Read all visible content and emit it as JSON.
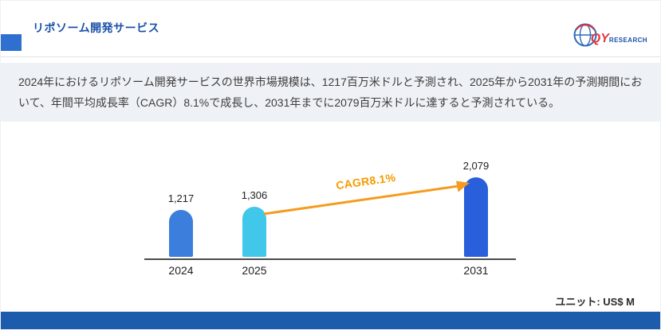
{
  "header": {
    "title": "リポソーム開発サービス",
    "logo": {
      "qy": "QY",
      "research": "RESEARCH"
    }
  },
  "description": "2024年におけるリポソーム開発サービスの世界市場規模は、1217百万米ドルと予測され、2025年から2031年の予測期間において、年間平均成長率（CAGR）8.1%で成長し、2031年までに2079百万米ドルに達すると予測されている。",
  "chart_data": {
    "type": "bar",
    "title": "",
    "xlabel": "",
    "ylabel": "",
    "categories": [
      "2024",
      "2025",
      "2031"
    ],
    "values": [
      1217,
      1306,
      2079
    ],
    "value_labels": [
      "1,217",
      "1,306",
      "2,079"
    ],
    "bar_colors": [
      "#3c7edb",
      "#41c7ea",
      "#2a5fdc"
    ],
    "annotation": "CAGR8.1%",
    "unit_label": "ユニット: US$ M",
    "ylim": [
      0,
      2300
    ],
    "grid": false,
    "legend": "none"
  },
  "colors": {
    "title_blue": "#1a50a8",
    "accent_blue": "#2e6fd0",
    "band_bg": "#eef1f5",
    "body_text": "#3d3d3d",
    "arrow_orange": "#f59b1e",
    "cagr_orange": "#f59b00",
    "footer_blue": "#1d5bad",
    "logo_red": "#e03a3e"
  }
}
